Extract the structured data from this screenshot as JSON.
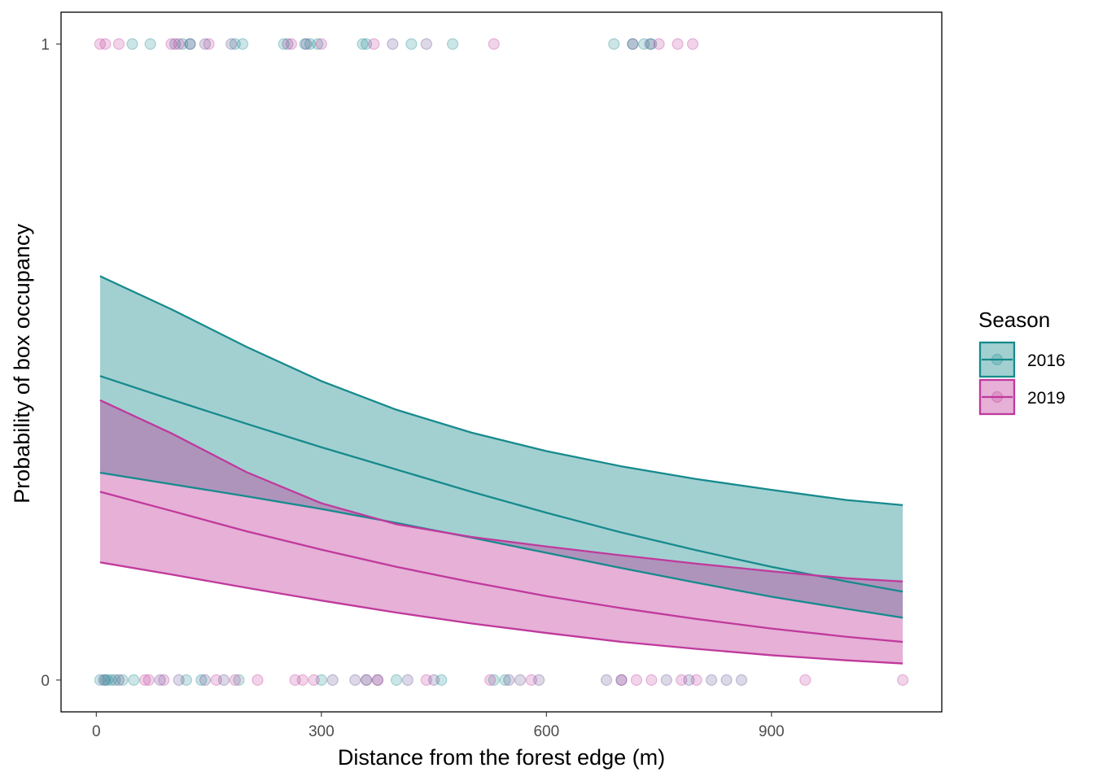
{
  "chart_data": {
    "type": "line",
    "xlabel": "Distance from the forest edge (m)",
    "ylabel": "Probability of box occupancy",
    "xlim": [
      -47,
      1127
    ],
    "ylim": [
      -0.05,
      1.05
    ],
    "x_ticks": [
      0,
      300,
      600,
      900
    ],
    "x_tick_labels": [
      "0",
      "300",
      "600",
      "900"
    ],
    "y_ticks": [
      0,
      1
    ],
    "y_tick_labels": [
      "0",
      "1"
    ],
    "grid": false,
    "legend": {
      "title": "Season",
      "position": "right"
    },
    "x": [
      5,
      100,
      200,
      300,
      400,
      500,
      600,
      700,
      800,
      900,
      1000,
      1075
    ],
    "series": [
      {
        "name": "2016",
        "color": "#178a8d",
        "fill": "#a2d1d3",
        "fit": [
          0.478,
          0.441,
          0.403,
          0.366,
          0.331,
          0.296,
          0.263,
          0.232,
          0.204,
          0.178,
          0.155,
          0.139
        ],
        "lower": [
          0.326,
          0.308,
          0.289,
          0.269,
          0.247,
          0.224,
          0.2,
          0.176,
          0.153,
          0.131,
          0.112,
          0.098
        ],
        "upper": [
          0.635,
          0.583,
          0.524,
          0.47,
          0.425,
          0.389,
          0.36,
          0.336,
          0.316,
          0.299,
          0.283,
          0.275
        ],
        "points": {
          "y1": [
            48,
            72,
            115,
            125,
            185,
            195,
            250,
            278,
            285,
            295,
            355,
            360,
            420,
            475,
            690,
            715,
            730,
            740
          ],
          "y0": [
            5,
            12,
            15,
            20,
            25,
            35,
            50,
            120,
            140,
            190,
            300,
            360,
            400,
            460,
            530,
            545
          ]
        }
      },
      {
        "name": "2019",
        "color": "#c0399c",
        "fill": "#e4b0d5",
        "fit": [
          0.296,
          0.266,
          0.234,
          0.205,
          0.178,
          0.154,
          0.132,
          0.113,
          0.096,
          0.081,
          0.068,
          0.06
        ],
        "lower": [
          0.185,
          0.166,
          0.145,
          0.125,
          0.106,
          0.089,
          0.074,
          0.06,
          0.049,
          0.039,
          0.031,
          0.026
        ],
        "upper": [
          0.44,
          0.388,
          0.327,
          0.278,
          0.245,
          0.225,
          0.21,
          0.196,
          0.183,
          0.171,
          0.16,
          0.155
        ],
        "points": {
          "y1": [
            5,
            12,
            30,
            100,
            110,
            150,
            260,
            300,
            370,
            530,
            750,
            775,
            795
          ],
          "y0": [
            65,
            70,
            90,
            160,
            185,
            215,
            265,
            275,
            290,
            360,
            375,
            440,
            525,
            580,
            700,
            720,
            740,
            780,
            800,
            945,
            1075
          ]
        }
      },
      {
        "name": "",
        "color": "#5e4f92",
        "points": {
          "y1": [
            105,
            125,
            145,
            180,
            255,
            280,
            395,
            440,
            715,
            738
          ],
          "y0": [
            10,
            30,
            85,
            110,
            145,
            170,
            315,
            345,
            375,
            415,
            450,
            550,
            565,
            590,
            680,
            700,
            760,
            790,
            820,
            840,
            860
          ]
        }
      }
    ]
  }
}
